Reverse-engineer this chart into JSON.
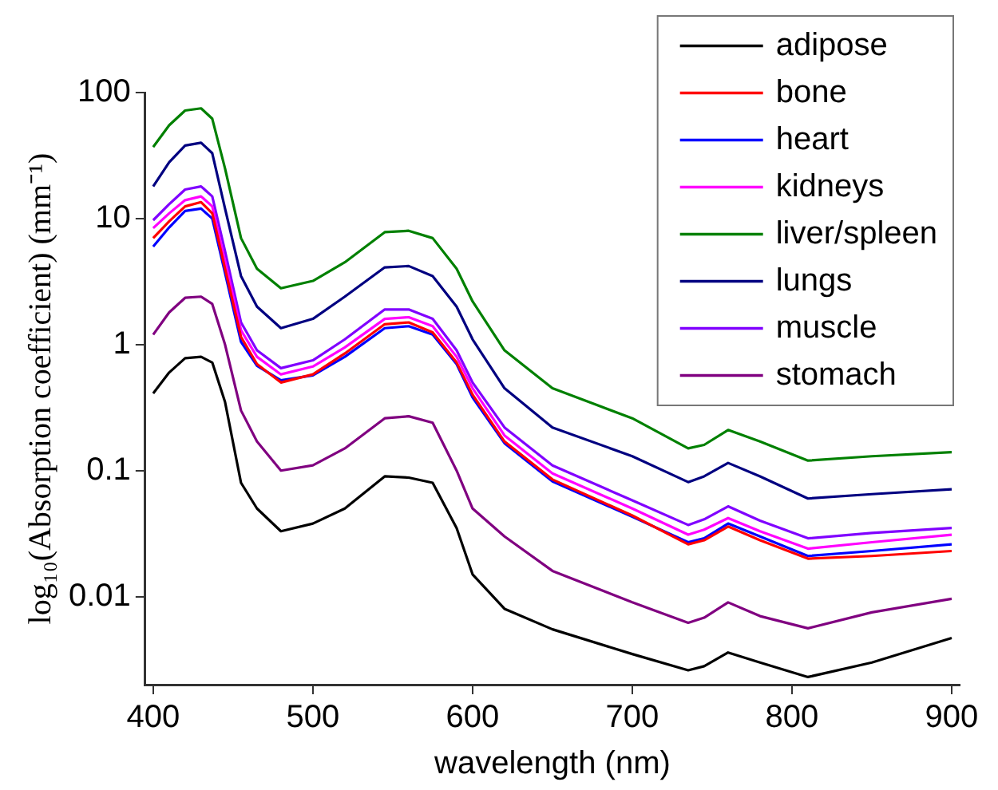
{
  "chart_data": {
    "type": "line",
    "xlabel": "wavelength (nm)",
    "ylabel": "log₁₀(Absorption coefficient) (mm⁻¹)",
    "x": [
      400,
      410,
      420,
      430,
      437,
      445,
      455,
      465,
      480,
      500,
      520,
      545,
      560,
      575,
      590,
      600,
      620,
      650,
      700,
      735,
      745,
      760,
      780,
      810,
      850,
      900
    ],
    "series": [
      {
        "name": "adipose",
        "color": "#000000",
        "values": [
          0.41,
          0.6,
          0.78,
          0.8,
          0.72,
          0.35,
          0.08,
          0.05,
          0.033,
          0.038,
          0.05,
          0.09,
          0.088,
          0.08,
          0.035,
          0.015,
          0.008,
          0.0055,
          0.0035,
          0.0026,
          0.0028,
          0.0036,
          0.003,
          0.0023,
          0.003,
          0.0047
        ]
      },
      {
        "name": "bone",
        "color": "#ff0000",
        "values": [
          7,
          9.5,
          12.5,
          13.5,
          11,
          4,
          1.15,
          0.7,
          0.5,
          0.58,
          0.85,
          1.45,
          1.5,
          1.25,
          0.72,
          0.4,
          0.17,
          0.085,
          0.044,
          0.026,
          0.028,
          0.036,
          0.028,
          0.02,
          0.021,
          0.023
        ]
      },
      {
        "name": "heart",
        "color": "#0000ff",
        "values": [
          6,
          8.5,
          11.5,
          12,
          10,
          3.7,
          1.05,
          0.68,
          0.52,
          0.57,
          0.8,
          1.35,
          1.4,
          1.2,
          0.7,
          0.38,
          0.165,
          0.082,
          0.043,
          0.027,
          0.029,
          0.038,
          0.03,
          0.021,
          0.023,
          0.026
        ]
      },
      {
        "name": "kidneys",
        "color": "#ff00ff",
        "values": [
          8.4,
          11,
          14,
          15,
          12.5,
          4.6,
          1.3,
          0.8,
          0.58,
          0.67,
          0.95,
          1.6,
          1.65,
          1.4,
          0.8,
          0.45,
          0.19,
          0.095,
          0.05,
          0.031,
          0.034,
          0.042,
          0.033,
          0.024,
          0.027,
          0.031
        ]
      },
      {
        "name": "liver/spleen",
        "color": "#008000",
        "values": [
          37,
          55,
          72,
          75,
          62,
          25,
          7,
          4,
          2.8,
          3.2,
          4.5,
          7.8,
          8,
          7,
          4,
          2.2,
          0.9,
          0.45,
          0.26,
          0.15,
          0.16,
          0.21,
          0.17,
          0.12,
          0.13,
          0.14
        ]
      },
      {
        "name": "lungs",
        "color": "#000080",
        "values": [
          18,
          28,
          38,
          40,
          33,
          12,
          3.5,
          2,
          1.35,
          1.6,
          2.4,
          4.1,
          4.2,
          3.5,
          2,
          1.1,
          0.45,
          0.22,
          0.13,
          0.081,
          0.09,
          0.115,
          0.09,
          0.06,
          0.065,
          0.071
        ]
      },
      {
        "name": "muscle",
        "color": "#8000ff",
        "values": [
          9.7,
          13,
          17,
          18,
          15,
          5.5,
          1.5,
          0.9,
          0.65,
          0.75,
          1.1,
          1.9,
          1.9,
          1.6,
          0.9,
          0.5,
          0.22,
          0.11,
          0.058,
          0.037,
          0.041,
          0.052,
          0.04,
          0.029,
          0.032,
          0.035
        ]
      },
      {
        "name": "stomach",
        "color": "#800080",
        "values": [
          1.2,
          1.8,
          2.35,
          2.4,
          2.1,
          1.0,
          0.3,
          0.17,
          0.1,
          0.11,
          0.15,
          0.26,
          0.27,
          0.24,
          0.1,
          0.05,
          0.03,
          0.016,
          0.009,
          0.0062,
          0.0068,
          0.009,
          0.007,
          0.0056,
          0.0075,
          0.0096
        ]
      }
    ],
    "log": "y",
    "xlim": [
      395,
      905
    ],
    "xticks": [
      400,
      500,
      600,
      700,
      800,
      900
    ],
    "ylim": [
      0.002,
      100
    ],
    "yticks": [
      0.01,
      0.1,
      1,
      10,
      100
    ],
    "legend": "top right"
  }
}
